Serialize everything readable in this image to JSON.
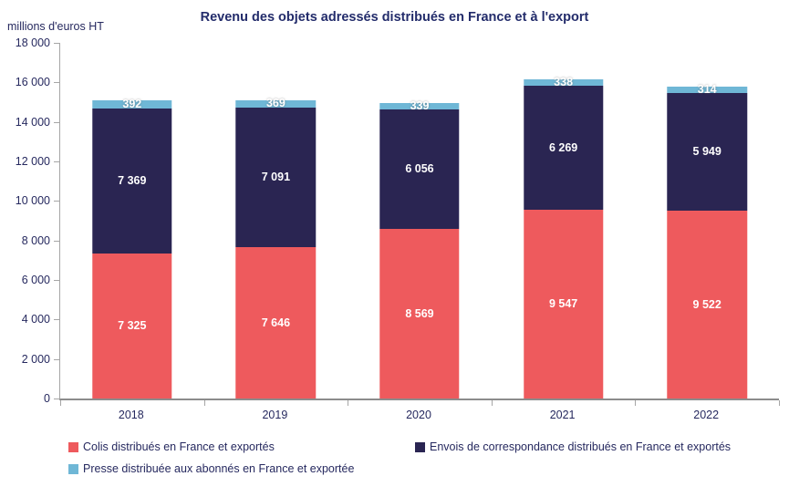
{
  "chart_data": {
    "type": "bar",
    "stacked": true,
    "title": "Revenu des objets adressés distribués en France et à l'export",
    "ylabel": "millions d'euros HT",
    "xlabel": "",
    "categories": [
      "2018",
      "2019",
      "2020",
      "2021",
      "2022"
    ],
    "series": [
      {
        "name": "Colis distribués en France et exportés",
        "color": "#EE5A5D",
        "values": [
          7325,
          7646,
          8569,
          9547,
          9522
        ]
      },
      {
        "name": "Envois de correspondance distribués en France et exportés",
        "color": "#2A2552",
        "values": [
          7369,
          7091,
          6056,
          6269,
          5949
        ]
      },
      {
        "name": "Presse distribuée aux abonnés en France et exportée",
        "color": "#6FB7D6",
        "values": [
          392,
          369,
          339,
          338,
          314
        ]
      }
    ],
    "ylim": [
      0,
      18000
    ],
    "ytick_step": 2000,
    "grid": false,
    "legend_position": "bottom",
    "legend_rows": [
      [
        0,
        1
      ],
      [
        2
      ]
    ],
    "value_labels": "inside-white-bold"
  },
  "colors": {
    "title_text": "#232C6B",
    "axis_text": "#26295F",
    "axis_line": "#8C8C8C",
    "tick_mark": "#A6A6A6",
    "background": "#FFFFFF"
  }
}
